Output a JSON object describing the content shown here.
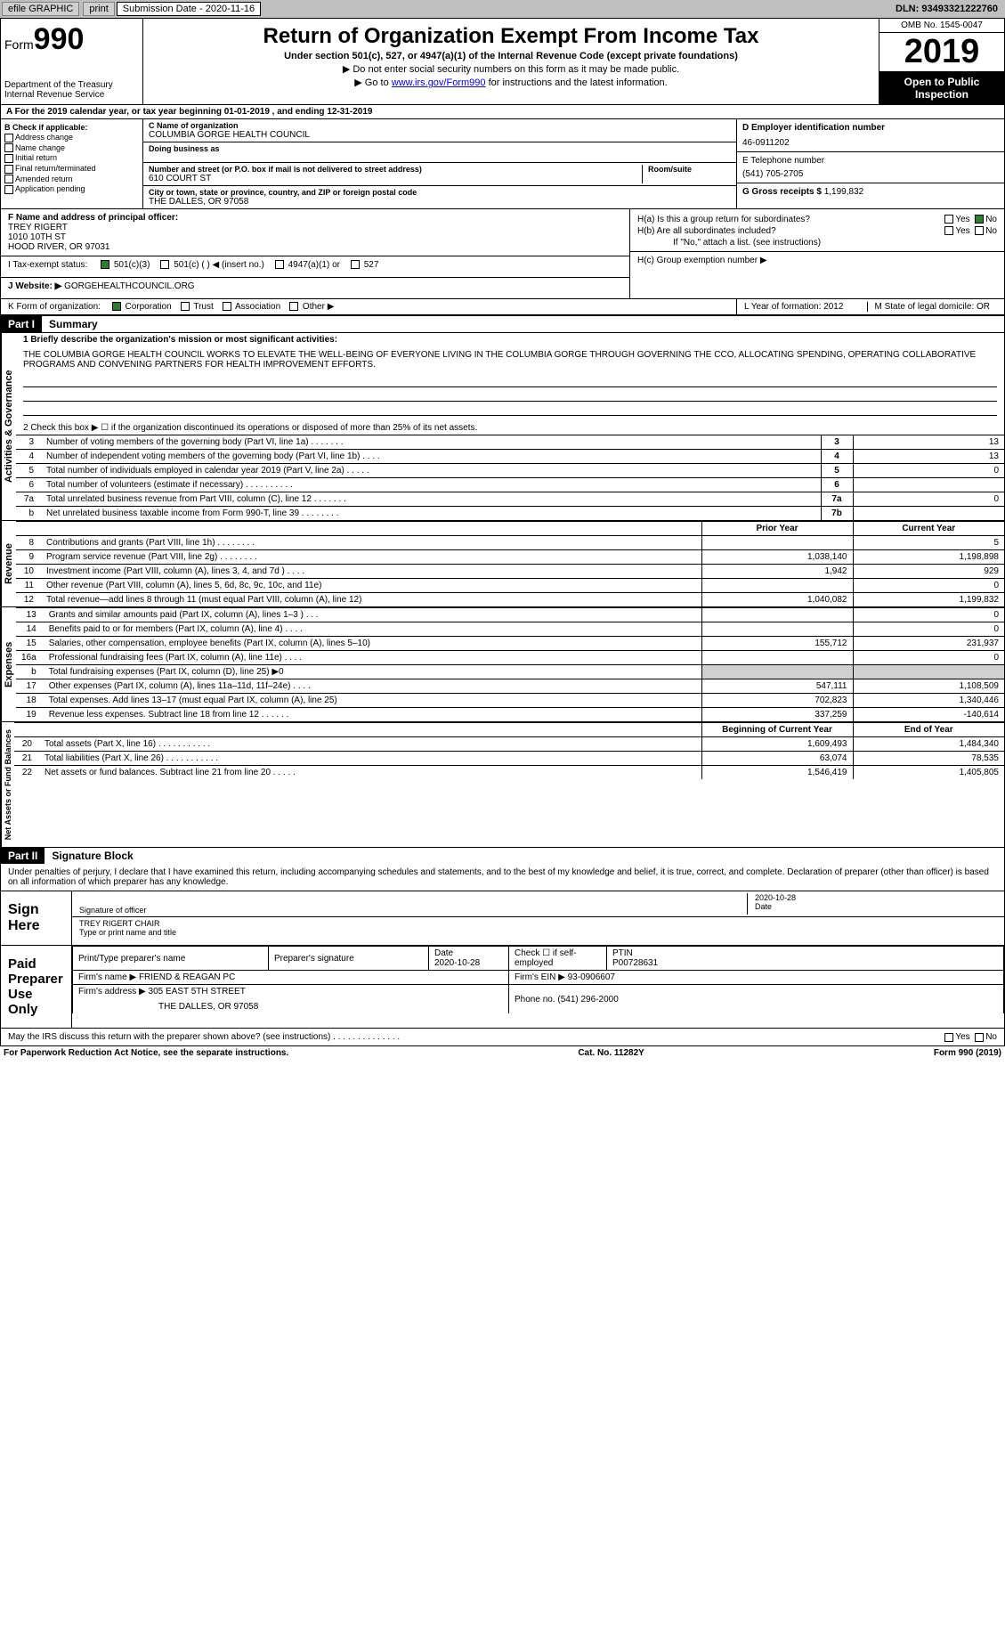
{
  "colors": {
    "black": "#000000",
    "gray": "#bfbfbf",
    "lightgray": "#d0d0d0",
    "link": "#0000ee",
    "checkgreen": "#2e7d32"
  },
  "topbar": {
    "efile": "efile GRAPHIC",
    "print": "print",
    "submission_label": "Submission Date - ",
    "submission_date": "2020-11-16",
    "dln_label": "DLN: ",
    "dln": "93493321222760"
  },
  "header": {
    "form_word": "Form",
    "form_num": "990",
    "dept": "Department of the Treasury\nInternal Revenue Service",
    "title": "Return of Organization Exempt From Income Tax",
    "sub": "Under section 501(c), 527, or 4947(a)(1) of the Internal Revenue Code (except private foundations)",
    "sub2a": "▶ Do not enter social security numbers on this form as it may be made public.",
    "sub2b": "▶ Go to ",
    "sub2b_link": "www.irs.gov/Form990",
    "sub2b_tail": " for instructions and the latest information.",
    "omb": "OMB No. 1545-0047",
    "taxyear": "2019",
    "opentopublic": "Open to Public Inspection"
  },
  "rowA": {
    "text": "A For the 2019 calendar year, or tax year beginning 01-01-2019   , and ending 12-31-2019"
  },
  "boxB": {
    "title": "B Check if applicable:",
    "opts": [
      "Address change",
      "Name change",
      "Initial return",
      "Final return/terminated",
      "Amended return",
      "Application pending"
    ]
  },
  "boxC": {
    "name_lbl": "C Name of organization",
    "name": "COLUMBIA GORGE HEALTH COUNCIL",
    "dba_lbl": "Doing business as",
    "dba": "",
    "street_lbl": "Number and street (or P.O. box if mail is not delivered to street address)",
    "room_lbl": "Room/suite",
    "street": "610 COURT ST",
    "city_lbl": "City or town, state or province, country, and ZIP or foreign postal code",
    "city": "THE DALLES, OR  97058"
  },
  "boxD": {
    "lbl": "D Employer identification number",
    "val": "46-0911202"
  },
  "boxE": {
    "lbl": "E Telephone number",
    "val": "(541) 705-2705"
  },
  "boxG": {
    "lbl": "G Gross receipts $ ",
    "val": "1,199,832"
  },
  "boxF": {
    "lbl": "F  Name and address of principal officer:",
    "name": "TREY RIGERT",
    "addr1": "1010 10TH ST",
    "addr2": "HOOD RIVER, OR  97031"
  },
  "boxH": {
    "a": "H(a)  Is this a group return for subordinates?",
    "a_yes": "Yes",
    "a_no": "No",
    "a_checked": "No",
    "b": "H(b)  Are all subordinates included?",
    "b_yes": "Yes",
    "b_no": "No",
    "note": "If \"No,\" attach a list. (see instructions)",
    "c": "H(c)  Group exemption number ▶"
  },
  "rowI": {
    "lbl": "I  Tax-exempt status:",
    "opts": [
      "501(c)(3)",
      "501(c) (  ) ◀ (insert no.)",
      "4947(a)(1) or",
      "527"
    ],
    "checked": "501(c)(3)"
  },
  "rowJ": {
    "lbl": "J  Website: ▶ ",
    "val": "GORGEHEALTHCOUNCIL.ORG"
  },
  "rowK": {
    "lbl": "K Form of organization:",
    "opts": [
      "Corporation",
      "Trust",
      "Association",
      "Other ▶"
    ],
    "checked": "Corporation"
  },
  "rowLM": {
    "L": "L Year of formation: 2012",
    "M": "M State of legal domicile: OR"
  },
  "part1": {
    "label": "Part I",
    "title": "Summary",
    "sideways1": "Activities & Governance",
    "line1_lbl": "1  Briefly describe the organization's mission or most significant activities:",
    "mission": "THE COLUMBIA GORGE HEALTH COUNCIL WORKS TO ELEVATE THE WELL-BEING OF EVERYONE LIVING IN THE COLUMBIA GORGE THROUGH GOVERNING THE CCO, ALLOCATING SPENDING, OPERATING COLLABORATIVE PROGRAMS AND CONVENING PARTNERS FOR HEALTH IMPROVEMENT EFFORTS.",
    "line2": "2   Check this box ▶ ☐  if the organization discontinued its operations or disposed of more than 25% of its net assets.",
    "governance_rows": [
      {
        "n": "3",
        "d": "Number of voting members of the governing body (Part VI, line 1a)   .    .    .    .    .    .    .",
        "b": "3",
        "v": "13"
      },
      {
        "n": "4",
        "d": "Number of independent voting members of the governing body (Part VI, line 1b)  .    .    .    .",
        "b": "4",
        "v": "13"
      },
      {
        "n": "5",
        "d": "Total number of individuals employed in calendar year 2019 (Part V, line 2a)  .    .    .    .    .",
        "b": "5",
        "v": "0"
      },
      {
        "n": "6",
        "d": "Total number of volunteers (estimate if necessary)   .    .    .    .    .    .    .    .    .    .",
        "b": "6",
        "v": ""
      },
      {
        "n": "7a",
        "d": "Total unrelated business revenue from Part VIII, column (C), line 12   .    .    .    .    .    .    .",
        "b": "7a",
        "v": "0"
      },
      {
        "n": "b",
        "d": "Net unrelated business taxable income from Form 990-T, line 39   .    .    .    .    .    .    .    .",
        "b": "7b",
        "v": ""
      }
    ],
    "sideways2": "Revenue",
    "rev_header": {
      "c1": "Prior Year",
      "c2": "Current Year"
    },
    "revenue_rows": [
      {
        "n": "8",
        "d": "Contributions and grants (Part VIII, line 1h)   .    .    .    .    .    .    .    .",
        "v1": "",
        "v2": "5"
      },
      {
        "n": "9",
        "d": "Program service revenue (Part VIII, line 2g)   .    .    .    .    .    .    .    .",
        "v1": "1,038,140",
        "v2": "1,198,898"
      },
      {
        "n": "10",
        "d": "Investment income (Part VIII, column (A), lines 3, 4, and 7d )   .    .    .    .",
        "v1": "1,942",
        "v2": "929"
      },
      {
        "n": "11",
        "d": "Other revenue (Part VIII, column (A), lines 5, 6d, 8c, 9c, 10c, and 11e)",
        "v1": "",
        "v2": "0"
      },
      {
        "n": "12",
        "d": "Total revenue—add lines 8 through 11 (must equal Part VIII, column (A), line 12)",
        "v1": "1,040,082",
        "v2": "1,199,832"
      }
    ],
    "sideways3": "Expenses",
    "expense_rows": [
      {
        "n": "13",
        "d": "Grants and similar amounts paid (Part IX, column (A), lines 1–3 )  .    .    .",
        "v1": "",
        "v2": "0"
      },
      {
        "n": "14",
        "d": "Benefits paid to or for members (Part IX, column (A), line 4)  .    .    .    .",
        "v1": "",
        "v2": "0"
      },
      {
        "n": "15",
        "d": "Salaries, other compensation, employee benefits (Part IX, column (A), lines 5–10)",
        "v1": "155,712",
        "v2": "231,937"
      },
      {
        "n": "16a",
        "d": "Professional fundraising fees (Part IX, column (A), line 11e)  .    .    .    .",
        "v1": "",
        "v2": "0"
      },
      {
        "n": "b",
        "d": "Total fundraising expenses (Part IX, column (D), line 25) ▶0",
        "v1": "gray",
        "v2": "gray"
      },
      {
        "n": "17",
        "d": "Other expenses (Part IX, column (A), lines 11a–11d, 11f–24e)  .    .    .    .",
        "v1": "547,111",
        "v2": "1,108,509"
      },
      {
        "n": "18",
        "d": "Total expenses. Add lines 13–17 (must equal Part IX, column (A), line 25)",
        "v1": "702,823",
        "v2": "1,340,446"
      },
      {
        "n": "19",
        "d": "Revenue less expenses. Subtract line 18 from line 12  .    .    .    .    .    .",
        "v1": "337,259",
        "v2": "-140,614"
      }
    ],
    "sideways4": "Net Assets or Fund Balances",
    "na_header": {
      "c1": "Beginning of Current Year",
      "c2": "End of Year"
    },
    "na_rows": [
      {
        "n": "20",
        "d": "Total assets (Part X, line 16)  .    .    .    .    .    .    .    .    .    .    .",
        "v1": "1,609,493",
        "v2": "1,484,340"
      },
      {
        "n": "21",
        "d": "Total liabilities (Part X, line 26)  .    .    .    .    .    .    .    .    .    .    .",
        "v1": "63,074",
        "v2": "78,535"
      },
      {
        "n": "22",
        "d": "Net assets or fund balances. Subtract line 21 from line 20  .    .    .    .    .",
        "v1": "1,546,419",
        "v2": "1,405,805"
      }
    ]
  },
  "part2": {
    "label": "Part II",
    "title": "Signature Block",
    "decl": "Under penalties of perjury, I declare that I have examined this return, including accompanying schedules and statements, and to the best of my knowledge and belief, it is true, correct, and complete. Declaration of preparer (other than officer) is based on all information of which preparer has any knowledge.",
    "sign_here": "Sign Here",
    "sig_officer": "Signature of officer",
    "sig_date_lbl": "Date",
    "sig_date": "2020-10-28",
    "officer_name": "TREY RIGERT CHAIR",
    "officer_name_lbl": "Type or print name and title",
    "paid": "Paid Preparer Use Only",
    "prep_headers": [
      "Print/Type preparer's name",
      "Preparer's signature",
      "Date",
      "Check ☐ if self-employed",
      "PTIN"
    ],
    "prep_row": {
      "name": "",
      "sig": "",
      "date": "2020-10-28",
      "ptin": "P00728631"
    },
    "firm_name_lbl": "Firm's name    ▶ ",
    "firm_name": "FRIEND & REAGAN PC",
    "firm_ein_lbl": "Firm's EIN ▶ ",
    "firm_ein": "93-0906607",
    "firm_addr_lbl": "Firm's address ▶ ",
    "firm_addr1": "305 EAST 5TH STREET",
    "firm_addr2": "THE DALLES, OR  97058",
    "phone_lbl": "Phone no. ",
    "phone": "(541) 296-2000",
    "discuss": "May the IRS discuss this return with the preparer shown above? (see instructions)   .    .    .    .    .    .    .    .    .    .    .    .    .    .",
    "discuss_yes": "Yes",
    "discuss_no": "No"
  },
  "footer": {
    "left": "For Paperwork Reduction Act Notice, see the separate instructions.",
    "center": "Cat. No. 11282Y",
    "right": "Form 990 (2019)"
  }
}
